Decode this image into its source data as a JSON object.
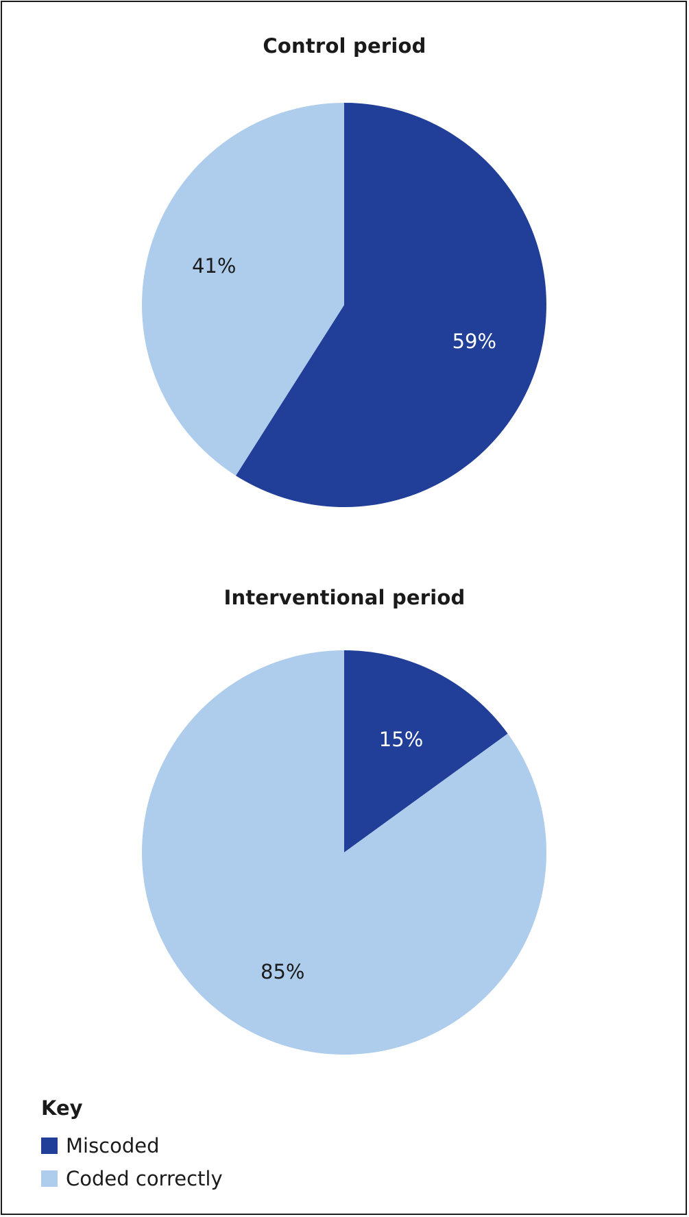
{
  "chart_data": [
    {
      "type": "pie",
      "title": "Control period",
      "slices": [
        {
          "label": "Miscoded",
          "value": 59,
          "display": "59%"
        },
        {
          "label": "Coded correctly",
          "value": 41,
          "display": "41%"
        }
      ]
    },
    {
      "type": "pie",
      "title": "Interventional period",
      "slices": [
        {
          "label": "Miscoded",
          "value": 15,
          "display": "15%"
        },
        {
          "label": "Coded correctly",
          "value": 85,
          "display": "85%"
        }
      ]
    }
  ],
  "legend": {
    "title": "Key",
    "items": [
      {
        "label": "Miscoded",
        "color": "#213f99"
      },
      {
        "label": "Coded correctly",
        "color": "#aecceb"
      }
    ]
  },
  "colors": {
    "miscoded": "#213f99",
    "coded_correctly": "#aecceb",
    "label_on_dark": "#ffffff",
    "label_on_light": "#1a1a1a"
  }
}
